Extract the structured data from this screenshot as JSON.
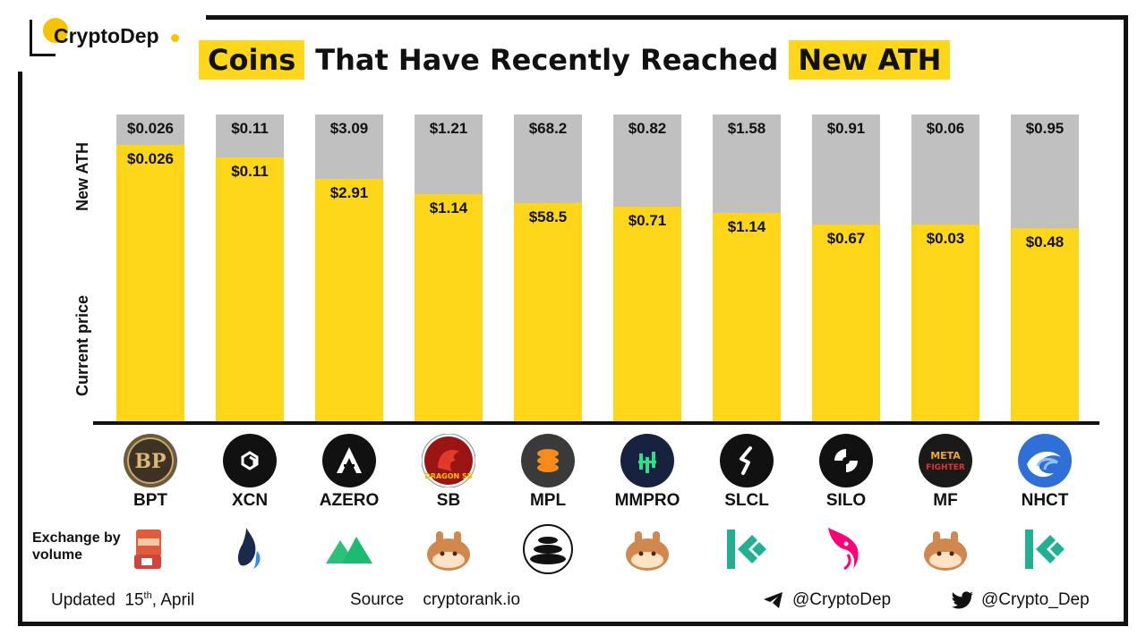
{
  "brand": {
    "name": "CryptoDep"
  },
  "title": {
    "part1": "Coins",
    "part2": "That Have Recently Reached",
    "part3": "New ATH"
  },
  "axis_labels": {
    "top": "New ATH",
    "bottom": "Current price"
  },
  "chart_data": {
    "type": "bar",
    "title": "Coins That Have Recently Reached New ATH",
    "categories": [
      "BPT",
      "XCN",
      "AZERO",
      "SB",
      "MPL",
      "MMPRO",
      "SLCL",
      "SILO",
      "MF",
      "NHCT"
    ],
    "ath_labels": [
      "$0.026",
      "$0.11",
      "$3.09",
      "$1.21",
      "$68.2",
      "$0.82",
      "$1.58",
      "$0.91",
      "$0.06",
      "$0.95"
    ],
    "current_labels": [
      "$0.026",
      "$0.11",
      "$2.91",
      "$1.14",
      "$58.5",
      "$0.71",
      "$1.14",
      "$0.67",
      "$0.03",
      "$0.48"
    ],
    "current_pct_of_ath": [
      0.9,
      0.86,
      0.79,
      0.74,
      0.71,
      0.7,
      0.68,
      0.64,
      0.64,
      0.63
    ],
    "series": [
      {
        "name": "New ATH",
        "color": "#c0c0c0"
      },
      {
        "name": "Current price",
        "color": "#fdd619"
      }
    ]
  },
  "coins": [
    {
      "ticker": "BPT",
      "icon": "bp-icon",
      "exchange_icon": "bitmart-icon"
    },
    {
      "ticker": "XCN",
      "icon": "xcn-icon",
      "exchange_icon": "huobi-icon"
    },
    {
      "ticker": "AZERO",
      "icon": "azero-icon",
      "exchange_icon": "mexc-icon"
    },
    {
      "ticker": "SB",
      "icon": "dragon-icon",
      "exchange_icon": "pancakeswap-icon"
    },
    {
      "ticker": "MPL",
      "icon": "maple-icon",
      "exchange_icon": "balancer-icon"
    },
    {
      "ticker": "MMPRO",
      "icon": "mmpro-icon",
      "exchange_icon": "pancakeswap-icon"
    },
    {
      "ticker": "SLCL",
      "icon": "slcl-icon",
      "exchange_icon": "kucoin-icon"
    },
    {
      "ticker": "SILO",
      "icon": "silo-icon",
      "exchange_icon": "uniswap-icon"
    },
    {
      "ticker": "MF",
      "icon": "metafighter-icon",
      "exchange_icon": "pancakeswap-icon"
    },
    {
      "ticker": "NHCT",
      "icon": "nhct-icon",
      "exchange_icon": "kucoin-icon"
    }
  ],
  "exchange_label": "Exchange by volume",
  "footer": {
    "updated_label": "Updated",
    "updated_day": "15",
    "updated_suffix": "th",
    "updated_month": ", April",
    "source_label": "Source",
    "source_value": "cryptorank.io",
    "telegram": "@CryptoDep",
    "twitter": "@Crypto_Dep"
  },
  "colors": {
    "accent": "#fdd619",
    "ath": "#c0c0c0",
    "kucoin": "#23af91",
    "pancake": "#d1884f",
    "uniswap": "#ff007a"
  }
}
